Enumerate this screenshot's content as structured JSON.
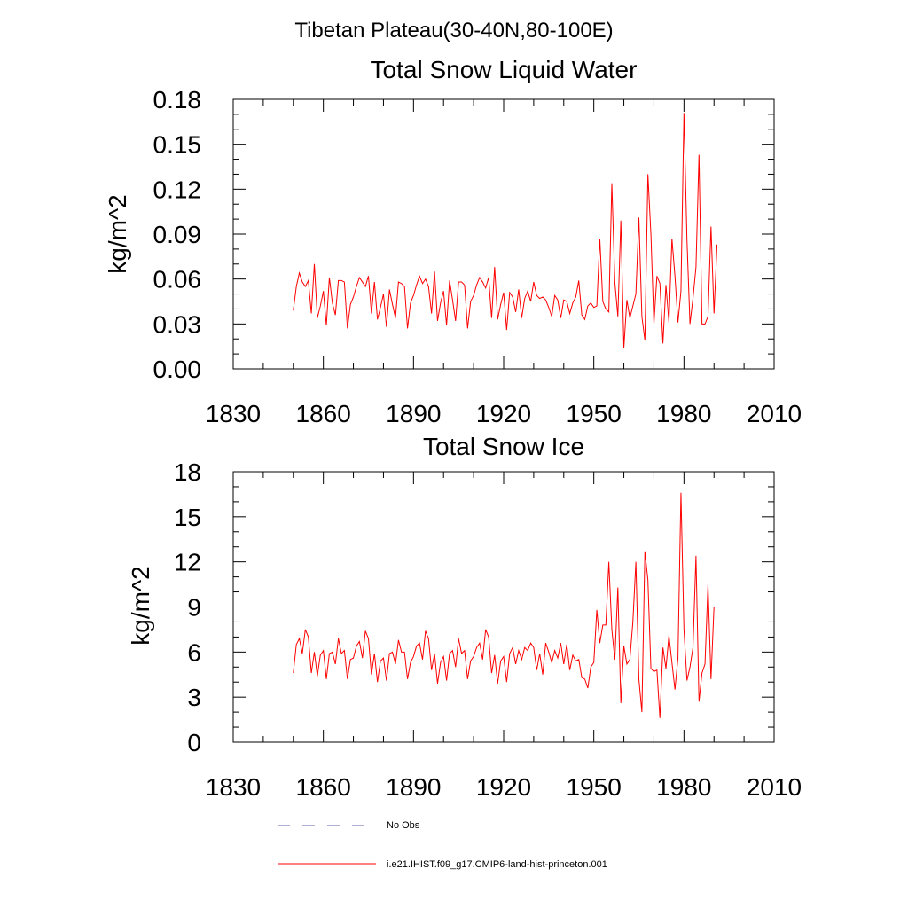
{
  "suptitle": "Tibetan Plateau(30-40N,80-100E)",
  "legend": [
    {
      "label": "No Obs",
      "color": "#5b5fa8",
      "dash": true
    },
    {
      "label": "i.e21.IHIST.f09_g17.CMIP6-land-hist-princeton.001",
      "color": "#ff0000",
      "dash": false
    }
  ],
  "chart_data": [
    {
      "type": "line",
      "title": "Total Snow Liquid Water",
      "xlabel": "",
      "ylabel": "kg/m^2",
      "xlim": [
        1830,
        2010
      ],
      "ylim": [
        0,
        0.18
      ],
      "xticks": [
        "1830",
        "1860",
        "1890",
        "1920",
        "1950",
        "1980",
        "2010"
      ],
      "yticks": [
        "0.00",
        "0.03",
        "0.06",
        "0.09",
        "0.12",
        "0.15",
        "0.18"
      ],
      "series": [
        {
          "color": "#ff0000",
          "x_start": 1850,
          "values": [
            0.039,
            0.055,
            0.064,
            0.058,
            0.055,
            0.059,
            0.037,
            0.07,
            0.034,
            0.042,
            0.052,
            0.029,
            0.061,
            0.044,
            0.036,
            0.059,
            0.059,
            0.058,
            0.027,
            0.043,
            0.048,
            0.055,
            0.061,
            0.058,
            0.055,
            0.062,
            0.037,
            0.058,
            0.033,
            0.041,
            0.05,
            0.028,
            0.053,
            0.043,
            0.034,
            0.058,
            0.057,
            0.055,
            0.027,
            0.044,
            0.049,
            0.056,
            0.062,
            0.057,
            0.06,
            0.055,
            0.037,
            0.065,
            0.032,
            0.044,
            0.052,
            0.029,
            0.059,
            0.046,
            0.032,
            0.058,
            0.058,
            0.056,
            0.027,
            0.045,
            0.049,
            0.056,
            0.061,
            0.058,
            0.054,
            0.061,
            0.034,
            0.068,
            0.033,
            0.043,
            0.051,
            0.026,
            0.051,
            0.048,
            0.038,
            0.053,
            0.034,
            0.047,
            0.052,
            0.045,
            0.058,
            0.049,
            0.047,
            0.048,
            0.046,
            0.041,
            0.035,
            0.049,
            0.046,
            0.034,
            0.046,
            0.045,
            0.037,
            0.044,
            0.048,
            0.059,
            0.036,
            0.033,
            0.042,
            0.044,
            0.041,
            0.042,
            0.087,
            0.045,
            0.04,
            0.038,
            0.124,
            0.058,
            0.035,
            0.099,
            0.014,
            0.046,
            0.034,
            0.042,
            0.05,
            0.101,
            0.035,
            0.019,
            0.13,
            0.09,
            0.03,
            0.062,
            0.057,
            0.017,
            0.056,
            0.031,
            0.087,
            0.062,
            0.031,
            0.052,
            0.171,
            0.086,
            0.03,
            0.047,
            0.068,
            0.143,
            0.03,
            0.03,
            0.035,
            0.095,
            0.037,
            0.083
          ]
        }
      ]
    },
    {
      "type": "line",
      "title": "Total Snow Ice",
      "xlabel": "",
      "ylabel": "kg/m^2",
      "xlim": [
        1830,
        2010
      ],
      "ylim": [
        0,
        18
      ],
      "xticks": [
        "1830",
        "1860",
        "1890",
        "1920",
        "1950",
        "1980",
        "2010"
      ],
      "yticks": [
        "0",
        "3",
        "6",
        "9",
        "12",
        "15",
        "18"
      ],
      "series": [
        {
          "color": "#ff0000",
          "x_start": 1850,
          "values": [
            4.6,
            6.5,
            6.9,
            5.9,
            7.5,
            7.0,
            4.6,
            6.0,
            4.4,
            5.8,
            6.1,
            4.2,
            5.9,
            6.0,
            5.2,
            6.9,
            5.9,
            6.1,
            4.2,
            5.5,
            5.6,
            6.4,
            6.7,
            5.6,
            7.4,
            6.9,
            4.5,
            5.9,
            4.0,
            5.4,
            5.6,
            4.1,
            5.9,
            6.0,
            5.2,
            6.8,
            6.0,
            6.0,
            4.2,
            5.3,
            5.7,
            6.4,
            6.6,
            5.5,
            7.4,
            6.9,
            4.8,
            5.9,
            3.9,
            5.3,
            5.7,
            4.1,
            5.9,
            6.1,
            5.0,
            6.9,
            5.9,
            6.1,
            4.2,
            5.4,
            5.7,
            6.3,
            6.6,
            5.5,
            7.5,
            7.0,
            4.6,
            5.8,
            3.9,
            5.4,
            5.7,
            4.0,
            5.9,
            6.3,
            5.2,
            6.1,
            5.5,
            6.3,
            6.1,
            6.6,
            6.3,
            4.8,
            5.9,
            4.5,
            6.6,
            6.0,
            5.3,
            6.1,
            5.6,
            6.6,
            5.2,
            6.5,
            4.8,
            5.8,
            5.4,
            5.5,
            4.3,
            4.2,
            3.6,
            5.0,
            5.3,
            8.8,
            6.6,
            7.8,
            7.8,
            12.0,
            7.5,
            5.5,
            10.3,
            2.6,
            6.4,
            5.2,
            5.5,
            8.0,
            12.0,
            4.2,
            2.0,
            12.7,
            10.8,
            4.9,
            4.7,
            4.8,
            1.6,
            6.3,
            4.9,
            7.1,
            5.3,
            3.5,
            5.6,
            16.6,
            7.5,
            4.1,
            5.0,
            6.3,
            12.4,
            2.7,
            4.6,
            5.2,
            10.5,
            4.2,
            9.0
          ]
        }
      ]
    }
  ]
}
